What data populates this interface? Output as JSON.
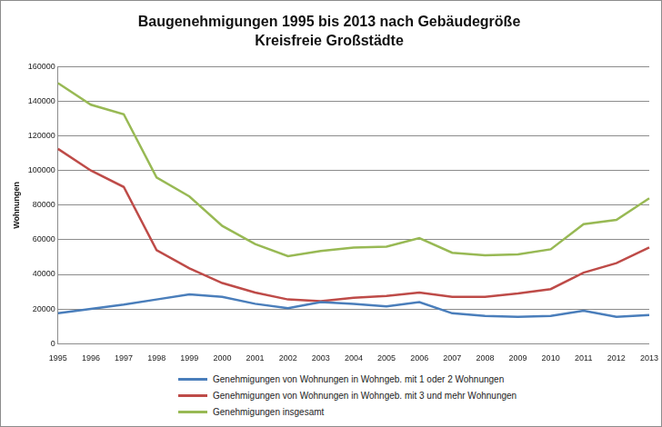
{
  "chart_data": {
    "type": "line",
    "title": "Baugenehmigungen 1995 bis 2013 nach Gebäudegröße",
    "subtitle": "Kreisfreie Großstädte",
    "y_label": "Wohnungen",
    "categories": [
      "1995",
      "1996",
      "1997",
      "1998",
      "1999",
      "2000",
      "2001",
      "2002",
      "2003",
      "2004",
      "2005",
      "2006",
      "2007",
      "2008",
      "2009",
      "2010",
      "2011",
      "2012",
      "2013"
    ],
    "series": [
      {
        "name": "Genehmigungen von Wohnungen in Wohngeb. mit 1 oder 2 Wohnungen",
        "color": "#4a7ebb",
        "values": [
          17500,
          20000,
          22500,
          25500,
          28500,
          27000,
          23000,
          20500,
          24000,
          23000,
          21500,
          24000,
          17500,
          16000,
          15500,
          16000,
          19000,
          15500,
          16500
        ]
      },
      {
        "name": "Genehmigungen von Wohnungen in Wohngeb. mit 3 und mehr Wohnungen",
        "color": "#be4b48",
        "values": [
          112500,
          100000,
          90500,
          54000,
          43500,
          35000,
          29500,
          25500,
          24500,
          26500,
          27500,
          29500,
          27000,
          27000,
          29000,
          31500,
          41000,
          46500,
          55500
        ]
      },
      {
        "name": "Genehmigungen insgesamt",
        "color": "#98b954",
        "values": [
          150500,
          138000,
          132500,
          96000,
          85000,
          68000,
          57500,
          50500,
          53500,
          55500,
          56000,
          61000,
          52500,
          51000,
          51500,
          54500,
          69000,
          71500,
          84000
        ]
      }
    ],
    "ylim": [
      0,
      160000
    ],
    "yticks": [
      0,
      20000,
      40000,
      60000,
      80000,
      100000,
      120000,
      140000,
      160000
    ],
    "grid": true,
    "legend": "bottom"
  }
}
